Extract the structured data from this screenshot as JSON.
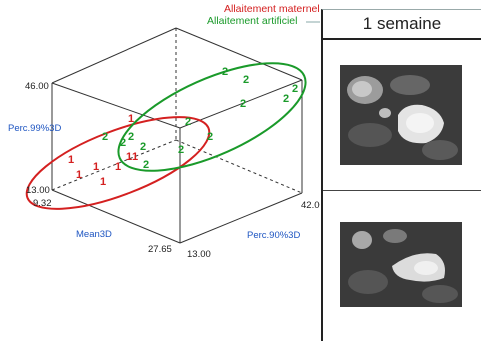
{
  "legend": {
    "maternel": {
      "label": "Allaitement maternel",
      "color": "#d42020"
    },
    "artificiel": {
      "label": "Allaitement artificiel",
      "color": "#1a9a2a"
    }
  },
  "plot3d": {
    "axes": {
      "vertical": {
        "label": "Perc.99%3D",
        "max_label": "46.00",
        "min_label": "13.00"
      },
      "left": {
        "label": "Mean3D",
        "min_label": "9.32",
        "max_label": "27.65"
      },
      "right": {
        "label": "Perc.90%3D",
        "min_label": "13.00",
        "max_label": "42.00"
      }
    },
    "groups": [
      {
        "name": "maternel",
        "marker": "1",
        "color": "#d42020",
        "count": 8
      },
      {
        "name": "artificiel",
        "marker": "2",
        "color": "#1a9a2a",
        "count": 13
      }
    ]
  },
  "panel": {
    "title": "1 semaine",
    "images": [
      {
        "name": "mri-image-top",
        "shade_outer": "#2b2b2b",
        "shade_inner": "#e6e6e6"
      },
      {
        "name": "mri-image-bottom",
        "shade_outer": "#2b2b2b",
        "shade_inner": "#dcdcdc"
      }
    ]
  }
}
